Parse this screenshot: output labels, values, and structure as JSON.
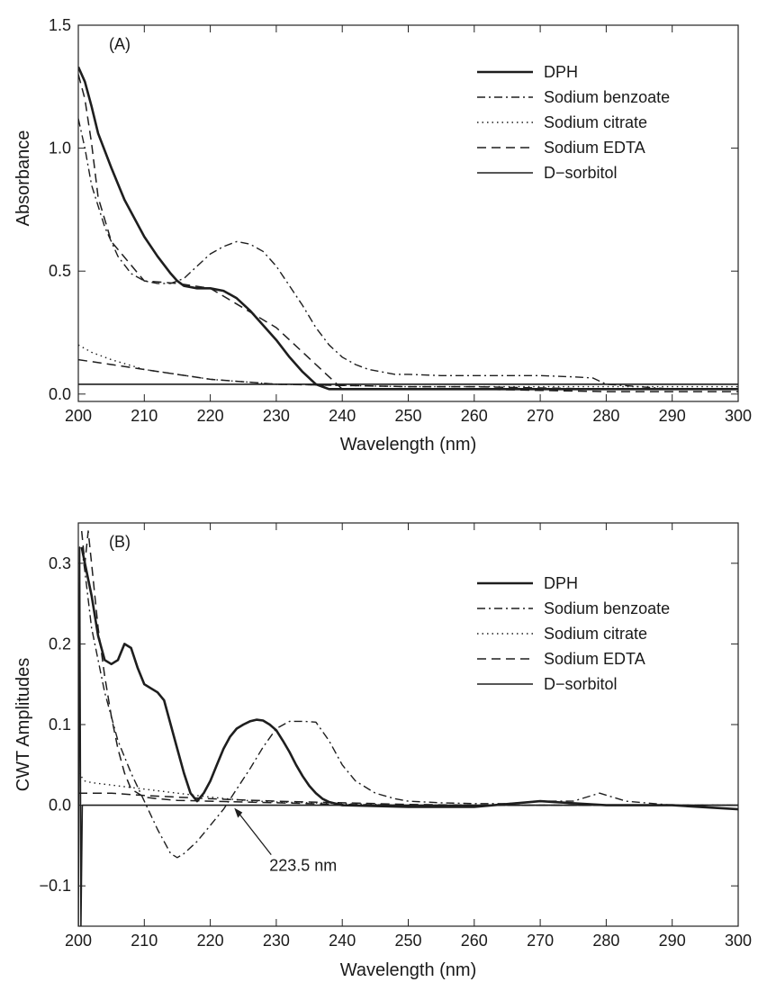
{
  "chart_data": [
    {
      "type": "line",
      "panel_label": "(A)",
      "xlabel": "Wavelength (nm)",
      "ylabel": "Absorbance",
      "xlim": [
        200,
        300
      ],
      "ylim": [
        -0.03,
        1.5
      ],
      "xticks": [
        "200",
        "210",
        "220",
        "230",
        "240",
        "250",
        "260",
        "270",
        "280",
        "290",
        "300"
      ],
      "yticks": [
        "0.0",
        "0.5",
        "1.0",
        "1.5"
      ],
      "legend_position": "top-right",
      "annotations": [],
      "series": [
        {
          "name": "DPH",
          "style": "solid-thick",
          "x": [
            200,
            201,
            202,
            203,
            205,
            207,
            210,
            212,
            214,
            215,
            216,
            218,
            220,
            222,
            224,
            226,
            228,
            230,
            232,
            234,
            236,
            237,
            238,
            240,
            250,
            260,
            270,
            280,
            290,
            300
          ],
          "y": [
            1.33,
            1.27,
            1.17,
            1.06,
            0.92,
            0.79,
            0.64,
            0.56,
            0.49,
            0.46,
            0.44,
            0.43,
            0.43,
            0.42,
            0.39,
            0.34,
            0.28,
            0.22,
            0.15,
            0.09,
            0.04,
            0.03,
            0.02,
            0.02,
            0.02,
            0.02,
            0.02,
            0.02,
            0.02,
            0.02
          ]
        },
        {
          "name": "Sodium benzoate",
          "style": "dashdot",
          "x": [
            200,
            201,
            202,
            204,
            206,
            208,
            210,
            212,
            214,
            216,
            218,
            220,
            222,
            224,
            226,
            228,
            230,
            232,
            234,
            236,
            238,
            240,
            242,
            244,
            246,
            248,
            250,
            255,
            260,
            265,
            270,
            275,
            278,
            280,
            285,
            290,
            300
          ],
          "y": [
            1.12,
            1.0,
            0.85,
            0.68,
            0.56,
            0.49,
            0.46,
            0.45,
            0.45,
            0.47,
            0.52,
            0.57,
            0.6,
            0.62,
            0.61,
            0.58,
            0.52,
            0.44,
            0.36,
            0.27,
            0.2,
            0.15,
            0.12,
            0.1,
            0.09,
            0.08,
            0.08,
            0.075,
            0.075,
            0.075,
            0.075,
            0.07,
            0.065,
            0.04,
            0.03,
            0.02,
            0.02
          ]
        },
        {
          "name": "Sodium citrate",
          "style": "dotted",
          "x": [
            200,
            202,
            205,
            210,
            215,
            220,
            230,
            240,
            250,
            260,
            270,
            280,
            290,
            300
          ],
          "y": [
            0.2,
            0.17,
            0.14,
            0.1,
            0.08,
            0.06,
            0.04,
            0.035,
            0.03,
            0.03,
            0.03,
            0.03,
            0.03,
            0.03
          ]
        },
        {
          "name": "Sodium EDTA",
          "style": "dashed",
          "x": [
            200,
            201,
            202,
            203,
            205,
            210,
            215,
            220,
            230,
            240,
            250,
            260,
            270,
            280,
            290,
            300
          ],
          "y": [
            1.3,
            1.2,
            1.02,
            0.8,
            0.62,
            0.46,
            0.45,
            0.43,
            0.27,
            0.02,
            0.02,
            0.02,
            0.015,
            0.01,
            0.01,
            0.01
          ]
        },
        {
          "name": "D−sorbitol",
          "style": "solid",
          "x": [
            200,
            300
          ],
          "y": [
            0.04,
            0.04
          ]
        },
        {
          "name": "",
          "style": "dashed",
          "x": [
            200,
            205,
            210,
            220,
            230,
            240,
            250,
            260,
            270,
            280,
            290,
            300
          ],
          "y": [
            0.14,
            0.12,
            0.1,
            0.06,
            0.04,
            0.035,
            0.03,
            0.03,
            0.025,
            0.02,
            0.02,
            0.02
          ]
        }
      ]
    },
    {
      "type": "line",
      "panel_label": "(B)",
      "xlabel": "Wavelength (nm)",
      "ylabel": "CWT Amplitudes",
      "xlim": [
        200,
        300
      ],
      "ylim": [
        -0.15,
        0.35
      ],
      "xticks": [
        "200",
        "210",
        "220",
        "230",
        "240",
        "250",
        "260",
        "270",
        "280",
        "290",
        "300"
      ],
      "yticks": [
        "−0.1",
        "0.0",
        "0.1",
        "0.2",
        "0.3"
      ],
      "legend_position": "top-right",
      "annotations": [
        {
          "text": "223.5 nm",
          "x": 223.5,
          "y": 0.0
        }
      ],
      "series": [
        {
          "name": "DPH",
          "style": "solid-thick",
          "x": [
            200.5,
            201,
            202,
            203,
            204,
            205,
            206,
            207,
            208,
            209,
            210,
            211,
            212,
            213,
            214,
            215,
            216,
            217,
            218,
            219,
            220,
            221,
            222,
            223,
            224,
            225,
            226,
            227,
            228,
            229,
            230,
            231,
            232,
            233,
            234,
            235,
            236,
            237,
            238,
            240,
            250,
            260,
            270,
            280,
            290,
            300
          ],
          "y": [
            0.32,
            0.3,
            0.26,
            0.21,
            0.18,
            0.175,
            0.18,
            0.2,
            0.195,
            0.17,
            0.15,
            0.145,
            0.14,
            0.13,
            0.1,
            0.07,
            0.04,
            0.015,
            0.005,
            0.015,
            0.03,
            0.05,
            0.07,
            0.085,
            0.095,
            0.1,
            0.104,
            0.106,
            0.105,
            0.1,
            0.093,
            0.08,
            0.066,
            0.05,
            0.036,
            0.024,
            0.015,
            0.008,
            0.004,
            0.0,
            -0.002,
            -0.002,
            0.005,
            0.0,
            0.0,
            -0.005
          ]
        },
        {
          "name": "Sodium benzoate",
          "style": "dashdot",
          "x": [
            200.5,
            201,
            202,
            204,
            206,
            208,
            210,
            212,
            214,
            215,
            216,
            218,
            220,
            222,
            224,
            226,
            228,
            230,
            232,
            234,
            236,
            238,
            240,
            242,
            245,
            248,
            250,
            255,
            260,
            265,
            270,
            275,
            279,
            283,
            290,
            300
          ],
          "y": [
            0.32,
            0.29,
            0.22,
            0.14,
            0.08,
            0.04,
            0.005,
            -0.03,
            -0.06,
            -0.065,
            -0.06,
            -0.045,
            -0.025,
            -0.005,
            0.02,
            0.045,
            0.072,
            0.095,
            0.104,
            0.104,
            0.103,
            0.08,
            0.05,
            0.03,
            0.015,
            0.008,
            0.005,
            0.003,
            0.002,
            0.002,
            0.005,
            0.005,
            0.015,
            0.005,
            0.0,
            0.0
          ]
        },
        {
          "name": "Sodium citrate",
          "style": "dotted",
          "x": [
            200,
            201,
            202,
            205,
            210,
            215,
            220,
            225,
            230,
            240,
            250,
            260,
            270,
            280,
            290,
            300
          ],
          "y": [
            0.04,
            0.03,
            0.028,
            0.025,
            0.02,
            0.015,
            0.01,
            0.006,
            0.004,
            0.002,
            0.0,
            0.0,
            0.0,
            0.0,
            0.0,
            0.0
          ]
        },
        {
          "name": "Sodium EDTA",
          "style": "dashed",
          "x": [
            200.5,
            201,
            201.5,
            202,
            203,
            204,
            205,
            206,
            207,
            208,
            210,
            212,
            215,
            220,
            230,
            240,
            250,
            260,
            270,
            280,
            290,
            300
          ],
          "y": [
            0.34,
            0.3,
            0.34,
            0.3,
            0.22,
            0.16,
            0.11,
            0.07,
            0.04,
            0.02,
            0.01,
            0.008,
            0.006,
            0.005,
            0.003,
            0.001,
            0.0,
            0.0,
            0.0,
            0.0,
            0.0,
            0.0
          ]
        },
        {
          "name": "D−sorbitol",
          "style": "solid",
          "x": [
            200,
            200.2,
            200.4,
            200.6,
            200.8,
            201,
            300
          ],
          "y": [
            -0.15,
            0.32,
            -0.15,
            0.0,
            0.0,
            0.0,
            0.0
          ]
        },
        {
          "name": "",
          "style": "dashed",
          "x": [
            200,
            205,
            210,
            220,
            230,
            240,
            250,
            260,
            270,
            280,
            290,
            300
          ],
          "y": [
            0.015,
            0.015,
            0.012,
            0.008,
            0.005,
            0.003,
            0.001,
            0.0,
            0.0,
            0.0,
            0.0,
            0.0
          ]
        }
      ]
    }
  ]
}
